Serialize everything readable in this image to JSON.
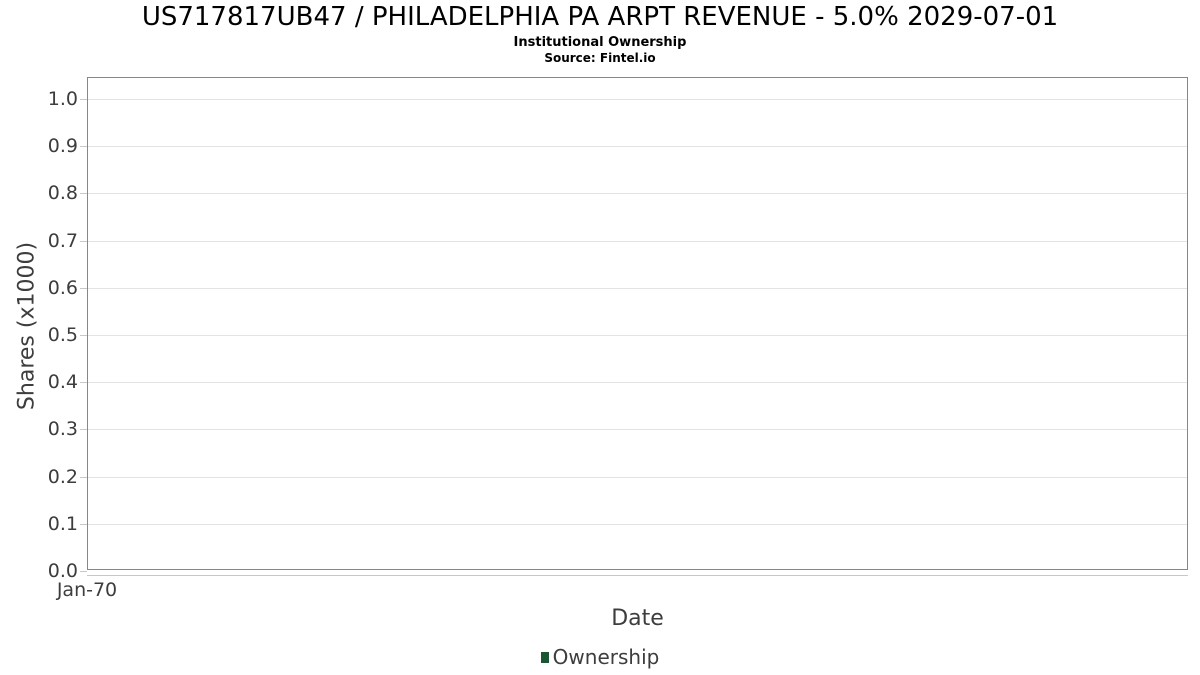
{
  "chart_data": {
    "type": "line",
    "title": "US717817UB47 / PHILADELPHIA PA ARPT REVENUE - 5.0% 2029-07-01",
    "subtitle": "Institutional Ownership",
    "source": "Source: Fintel.io",
    "xlabel": "Date",
    "ylabel": "Shares (x1000)",
    "x_tick_labels": [
      "Jan-70"
    ],
    "y_ticks": [
      {
        "value": 0.0,
        "label": "0.0"
      },
      {
        "value": 0.1,
        "label": "0.1"
      },
      {
        "value": 0.2,
        "label": "0.2"
      },
      {
        "value": 0.3,
        "label": "0.3"
      },
      {
        "value": 0.4,
        "label": "0.4"
      },
      {
        "value": 0.5,
        "label": "0.5"
      },
      {
        "value": 0.6,
        "label": "0.6"
      },
      {
        "value": 0.7,
        "label": "0.7"
      },
      {
        "value": 0.8,
        "label": "0.8"
      },
      {
        "value": 0.9,
        "label": "0.9"
      },
      {
        "value": 1.0,
        "label": "1.0"
      }
    ],
    "ylim": [
      0,
      1.047
    ],
    "grid": "horizontal",
    "legend": [
      {
        "name": "Ownership",
        "color": "#1a5632"
      }
    ],
    "series": [
      {
        "name": "Ownership",
        "x": [],
        "values": []
      }
    ]
  },
  "colors": {
    "background": "#ffffff",
    "frame": "#878787",
    "gridline": "#e3e3e3",
    "tick": "#c8c8c8",
    "axis_text": "#3d3d3d",
    "title_text": "#000000",
    "legend_ownership": "#1a5632"
  }
}
